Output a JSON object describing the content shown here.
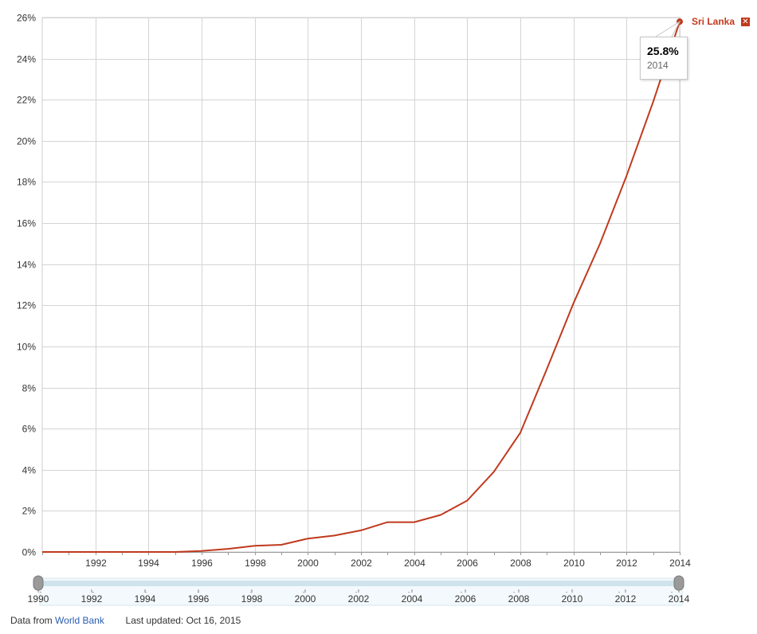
{
  "chart_data": {
    "type": "line",
    "series": [
      {
        "name": "Sri Lanka",
        "color": "#c03a1e",
        "x": [
          1990,
          1991,
          1992,
          1993,
          1994,
          1995,
          1996,
          1997,
          1998,
          1999,
          2000,
          2001,
          2002,
          2003,
          2004,
          2005,
          2006,
          2007,
          2008,
          2009,
          2010,
          2011,
          2012,
          2013,
          2014
        ],
        "values": [
          0,
          0,
          0,
          0,
          0,
          0,
          0.05,
          0.15,
          0.3,
          0.35,
          0.65,
          0.8,
          1.05,
          1.45,
          1.45,
          1.8,
          2.5,
          3.9,
          5.8,
          8.9,
          12.1,
          15.0,
          18.3,
          21.9,
          25.8
        ]
      }
    ],
    "xlim": [
      1990,
      2014
    ],
    "ylim": [
      0,
      26
    ],
    "y_ticks": [
      0,
      2,
      4,
      6,
      8,
      10,
      12,
      14,
      16,
      18,
      20,
      22,
      24,
      26
    ],
    "y_tick_labels": [
      "0%",
      "2%",
      "4%",
      "6%",
      "8%",
      "10%",
      "12%",
      "14%",
      "16%",
      "18%",
      "20%",
      "22%",
      "24%",
      "26%"
    ],
    "x_ticks": [
      1992,
      1994,
      1996,
      1998,
      2000,
      2002,
      2004,
      2006,
      2008,
      2010,
      2012,
      2014
    ],
    "x_tick_labels": [
      "1992",
      "1994",
      "1996",
      "1998",
      "2000",
      "2002",
      "2004",
      "2006",
      "2008",
      "2010",
      "2012",
      "2014"
    ],
    "grid": true,
    "legend_placement": "top-right",
    "tooltip": {
      "value": "25.8%",
      "year": "2014"
    },
    "slider": {
      "labels": [
        "1990",
        "1992",
        "1994",
        "1996",
        "1998",
        "2000",
        "2002",
        "2004",
        "2006",
        "2008",
        "2010",
        "2012",
        "2014"
      ],
      "range_start": 1990,
      "range_end": 2014
    }
  },
  "legend": {
    "label": "Sri Lanka",
    "close_glyph": "✕"
  },
  "footer": {
    "data_from_label": "Data from",
    "data_from_link": "World Bank",
    "last_updated": "Last updated: Oct 16, 2015"
  }
}
